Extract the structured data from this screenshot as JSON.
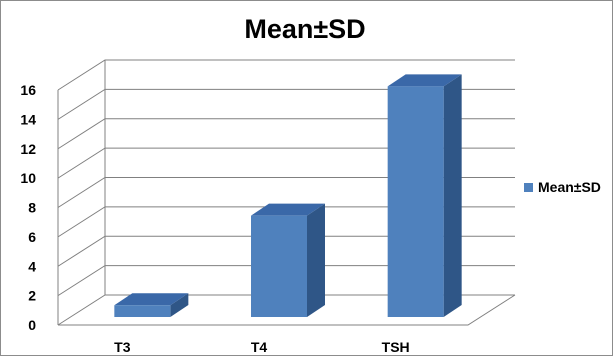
{
  "chart_data": {
    "type": "bar",
    "title": "Mean±SD",
    "categories": [
      "T3",
      "T4",
      "TSH"
    ],
    "series": [
      {
        "name": "Mean±SD",
        "values": [
          0.8,
          6.9,
          15.7
        ]
      }
    ],
    "ylim": [
      0,
      16
    ],
    "yticks": [
      0,
      2,
      4,
      6,
      8,
      10,
      12,
      14,
      16
    ],
    "xlabel": "",
    "ylabel": "",
    "grid": true,
    "legend": "right",
    "three_d": true,
    "colors": {
      "bar_front": "#4f81bd",
      "bar_side": "#2f5687",
      "bar_top": "#3a68a8",
      "grid": "#808080",
      "border": "#8c8c8c"
    }
  }
}
